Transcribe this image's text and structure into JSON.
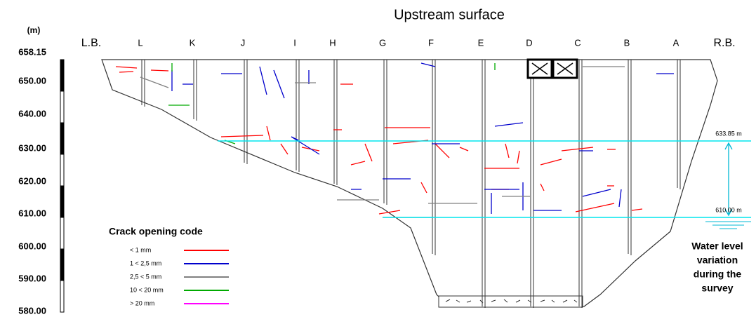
{
  "header": {
    "title": "Upstream surface"
  },
  "axis": {
    "unit": "(m)",
    "labels": [
      "658.15",
      "650.00",
      "640.00",
      "630.00",
      "620.00",
      "610.00",
      "600.00",
      "590.00",
      "580.00"
    ]
  },
  "columns": [
    "L.B.",
    "L",
    "K",
    "J",
    "I",
    "H",
    "G",
    "F",
    "E",
    "D",
    "C",
    "B",
    "A",
    "R.B."
  ],
  "water_levels": [
    "633.85 m",
    "610.00 m"
  ],
  "legend": {
    "title": "Crack opening code",
    "items": [
      {
        "label": "< 1 mm",
        "color": "#ff0000"
      },
      {
        "label": "1 < 2,5 mm",
        "color": "#0000cc"
      },
      {
        "label": "2,5 < 5 mm",
        "color": "#808080"
      },
      {
        "label": "10 < 20 mm",
        "color": "#00aa00"
      },
      {
        "label": "> 20 mm",
        "color": "#ff00ff"
      }
    ]
  },
  "note": [
    "Water level",
    "variation",
    "during the",
    "survey"
  ]
}
